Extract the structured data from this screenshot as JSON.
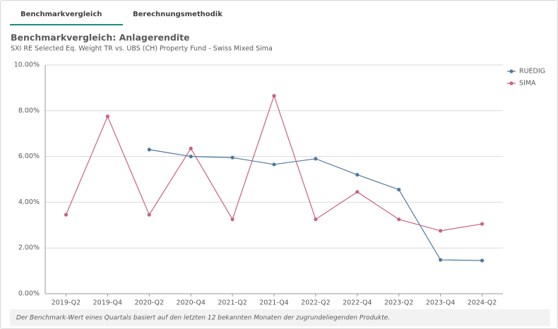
{
  "tabs": [
    "Benchmarkvergleich",
    "Berechnungsmethodik"
  ],
  "footnote": "Der Benchmark-Wert eines Quartals basiert auf den letzten 12 bekannten Monaten der zugrundeliegenden Produkte.",
  "chart_data": {
    "type": "line",
    "title": "Benchmarkvergleich: Anlagerendite",
    "subtitle": "SXI RE Selected Eq. Weight TR vs. UBS (CH) Property Fund - Swiss Mixed Sima",
    "categories": [
      "2019-Q2",
      "2019-Q4",
      "2020-Q2",
      "2020-Q4",
      "2021-Q2",
      "2021-Q4",
      "2022-Q2",
      "2022-Q4",
      "2023-Q2",
      "2023-Q4",
      "2024-Q2"
    ],
    "series": [
      {
        "name": "RUEDIG",
        "color": "#4e79a0",
        "values": [
          null,
          null,
          6.3,
          6.0,
          5.95,
          5.65,
          5.9,
          5.2,
          4.55,
          1.48,
          1.45
        ]
      },
      {
        "name": "SIMA",
        "color": "#c9627f",
        "values": [
          3.45,
          7.75,
          3.45,
          6.35,
          3.25,
          8.65,
          3.25,
          4.45,
          3.25,
          2.75,
          3.05
        ]
      }
    ],
    "ylim": [
      0,
      10
    ],
    "yticks": [
      {
        "value": 0,
        "label": "0.00%"
      },
      {
        "value": 2,
        "label": "2.00%"
      },
      {
        "value": 4,
        "label": "4.00%"
      },
      {
        "value": 6,
        "label": "6.00%"
      },
      {
        "value": 8,
        "label": "8.00%"
      },
      {
        "value": 10,
        "label": "10.00%"
      }
    ],
    "grid": true,
    "legend": "right"
  }
}
